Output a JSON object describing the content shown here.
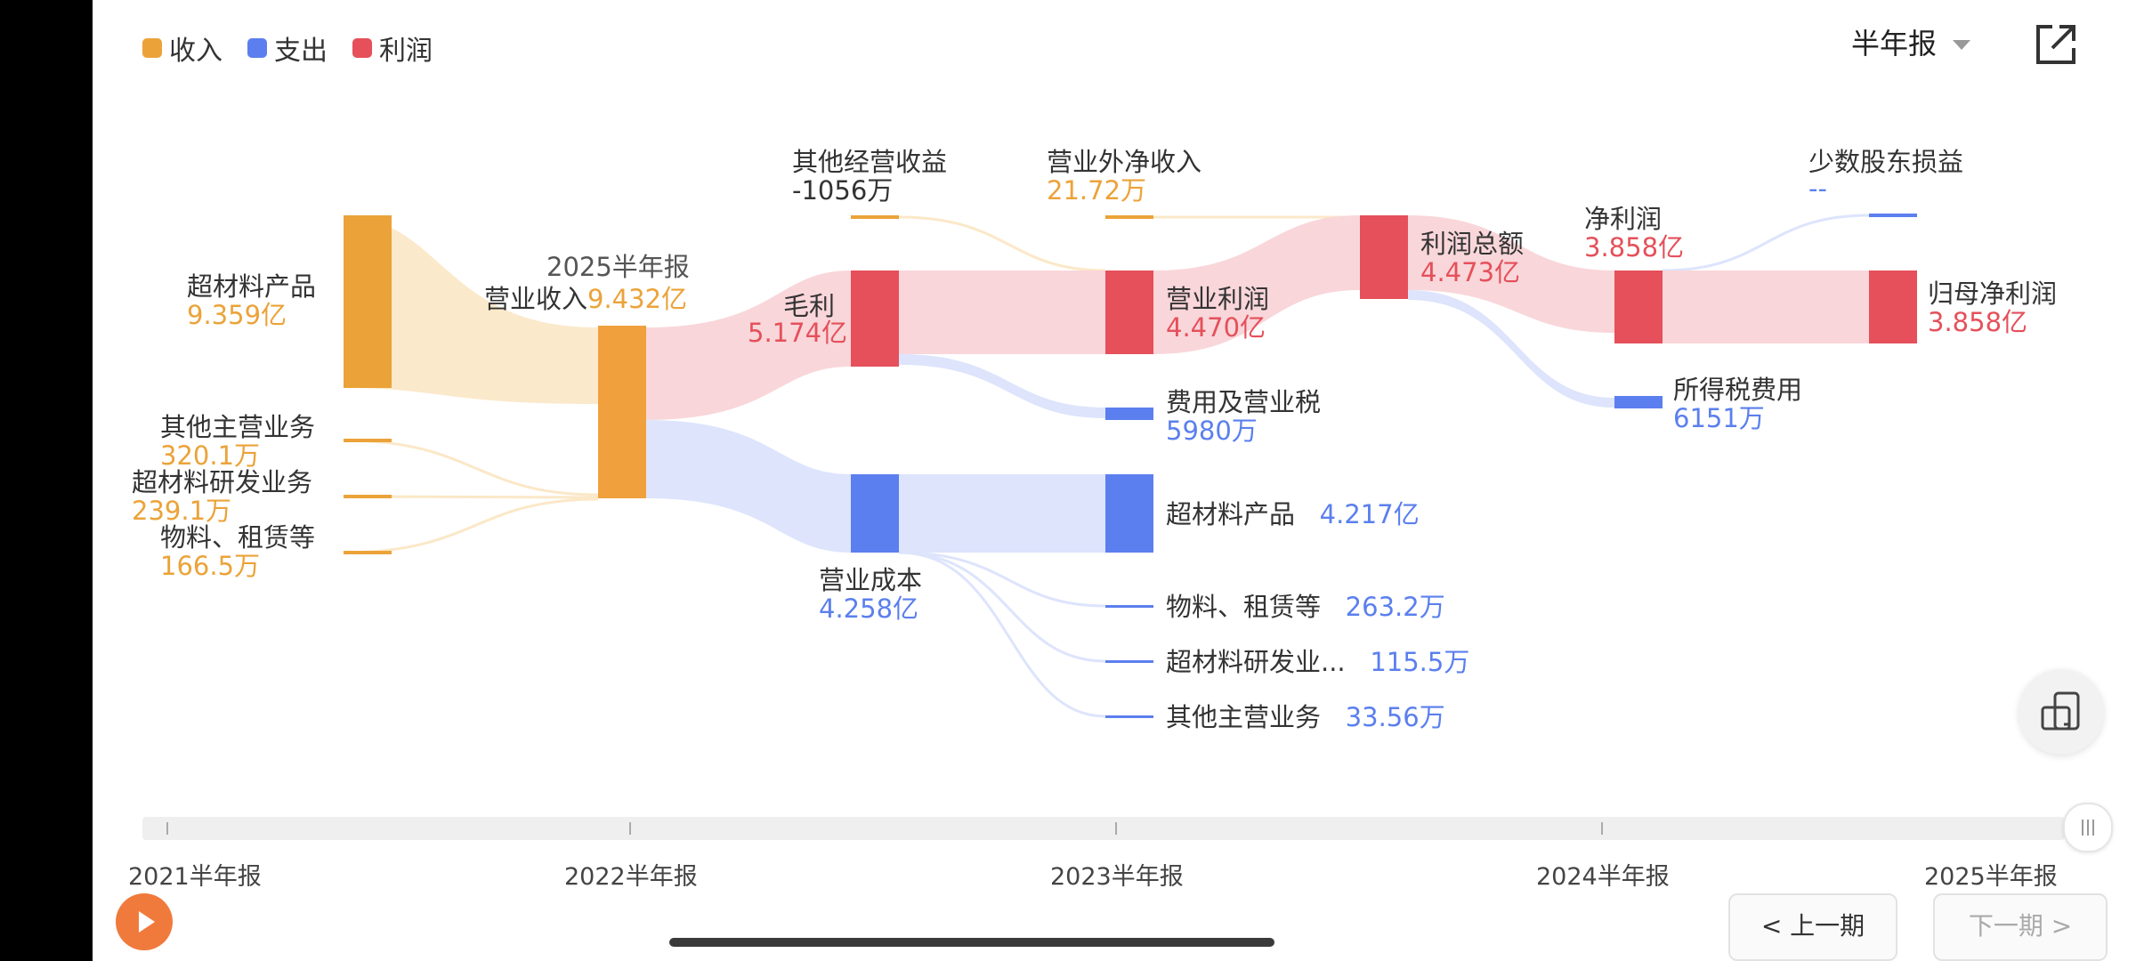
{
  "legend": [
    {
      "label": "收入",
      "color": "#EBA339"
    },
    {
      "label": "支出",
      "color": "#5B7FEE"
    },
    {
      "label": "利润",
      "color": "#E5505A"
    }
  ],
  "period_select": {
    "value": "半年报"
  },
  "share_icon": "external-link-icon",
  "sankey": {
    "report_period": "2025半年报",
    "revenue_sources": [
      {
        "name": "超材料产品",
        "value": "9.359亿"
      },
      {
        "name": "其他主营业务",
        "value": "320.1万"
      },
      {
        "name": "超材料研发业务",
        "value": "239.1万"
      },
      {
        "name": "物料、租赁等",
        "value": "166.5万"
      }
    ],
    "revenue": {
      "name": "营业收入",
      "value": "9.432亿"
    },
    "gross_profit": {
      "name": "毛利",
      "value": "5.174亿"
    },
    "operating_cost": {
      "name": "营业成本",
      "value": "4.258亿"
    },
    "other_operating_income": {
      "name": "其他经营收益",
      "value": "-1056万"
    },
    "non_operating_net_income": {
      "name": "营业外净收入",
      "value": "21.72万"
    },
    "operating_profit": {
      "name": "营业利润",
      "value": "4.470亿"
    },
    "expenses_taxes": {
      "name": "费用及营业税",
      "value": "5980万"
    },
    "cost_breakdown": [
      {
        "name": "超材料产品",
        "value": "4.217亿"
      },
      {
        "name": "物料、租赁等",
        "value": "263.2万"
      },
      {
        "name": "超材料研发业...",
        "value": "115.5万"
      },
      {
        "name": "其他主营业务",
        "value": "33.56万"
      }
    ],
    "total_profit": {
      "name": "利润总额",
      "value": "4.473亿"
    },
    "net_profit": {
      "name": "净利润",
      "value": "3.858亿"
    },
    "income_tax": {
      "name": "所得税费用",
      "value": "6151万"
    },
    "minority_interest": {
      "name": "少数股东损益",
      "value": "--"
    },
    "parent_net_profit": {
      "name": "归母净利润",
      "value": "3.858亿"
    }
  },
  "timeline": {
    "labels": [
      "2021半年报",
      "2022半年报",
      "2023半年报",
      "2024半年报",
      "2025半年报"
    ],
    "selected": "2025半年报"
  },
  "buttons": {
    "prev": "< 上一期",
    "next": "下一期 >"
  }
}
